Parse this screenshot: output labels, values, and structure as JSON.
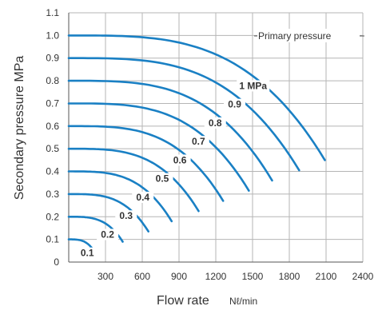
{
  "chart_data": {
    "type": "line",
    "title": "",
    "xlabel": "Flow rate",
    "xlabel_unit": "Nℓ/min",
    "ylabel": "Secondary pressure  MPa",
    "xlim": [
      0,
      2400
    ],
    "ylim": [
      0,
      1.1
    ],
    "x_ticks": [
      "300",
      "600",
      "900",
      "1200",
      "1500",
      "1800",
      "2100",
      "2400"
    ],
    "y_ticks": [
      "0",
      "0.1",
      "0.2",
      "0.3",
      "0.4",
      "0.5",
      "0.6",
      "0.7",
      "0.8",
      "0.9",
      "1.0",
      "1.1"
    ],
    "grid": true,
    "line_color": "#1a80c4",
    "annotation": "Primary pressure",
    "series": [
      {
        "name": "0.1",
        "set_pressure": 0.1,
        "end_flow": 210
      },
      {
        "name": "0.2",
        "set_pressure": 0.2,
        "end_flow": 440
      },
      {
        "name": "0.3",
        "set_pressure": 0.3,
        "end_flow": 650
      },
      {
        "name": "0.4",
        "set_pressure": 0.4,
        "end_flow": 840
      },
      {
        "name": "0.5",
        "set_pressure": 0.5,
        "end_flow": 1060
      },
      {
        "name": "0.6",
        "set_pressure": 0.6,
        "end_flow": 1260
      },
      {
        "name": "0.7",
        "set_pressure": 0.7,
        "end_flow": 1470
      },
      {
        "name": "0.8",
        "set_pressure": 0.8,
        "end_flow": 1660
      },
      {
        "name": "0.9",
        "set_pressure": 0.9,
        "end_flow": 1880
      },
      {
        "name": "1 MPa",
        "set_pressure": 1.0,
        "end_flow": 2090
      }
    ]
  }
}
